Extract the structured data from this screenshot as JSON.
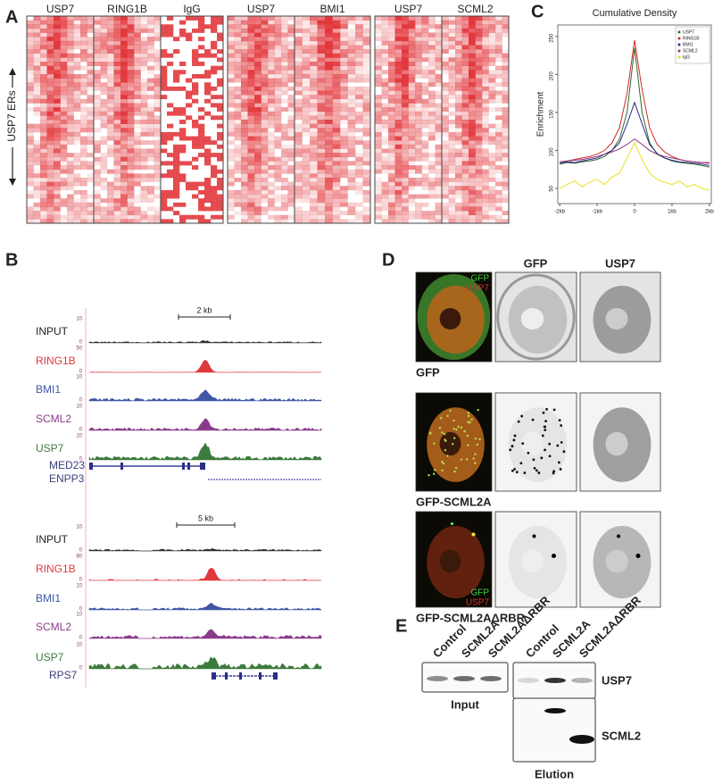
{
  "panel_labels": [
    "A",
    "B",
    "C",
    "D",
    "E"
  ],
  "panel_a": {
    "groups": [
      [
        "USP7",
        "RING1B",
        "IgG"
      ],
      [
        "USP7",
        "BMI1"
      ],
      [
        "USP7",
        "SCML2"
      ]
    ],
    "y_label": "USP7 ERs"
  },
  "panel_b": {
    "loci": [
      {
        "scale": "2 kb",
        "genes": [
          "MED23",
          "ENPP3"
        ],
        "tracks": [
          {
            "name": "INPUT",
            "max": 10,
            "min": 0
          },
          {
            "name": "RING1B",
            "max": 50,
            "min": 0
          },
          {
            "name": "BMI1",
            "max": 10,
            "min": 0
          },
          {
            "name": "SCML2",
            "max": 10,
            "min": 0
          },
          {
            "name": "USP7",
            "max": 10,
            "min": 0
          }
        ]
      },
      {
        "scale": "5 kb",
        "genes": [
          "RPS7"
        ],
        "tracks": [
          {
            "name": "INPUT",
            "max": 10,
            "min": 0
          },
          {
            "name": "RING1B",
            "max": 80,
            "min": 0
          },
          {
            "name": "BMI1",
            "max": 10,
            "min": 0
          },
          {
            "name": "SCML2",
            "max": 10,
            "min": 0
          },
          {
            "name": "USP7",
            "max": 10,
            "min": 0
          }
        ]
      }
    ]
  },
  "chart_data": {
    "type": "line",
    "title": "Cumulative Density",
    "y_label": "Enrichment",
    "x": [
      -2,
      -1.8,
      -1.6,
      -1.4,
      -1.2,
      -1,
      -0.8,
      -0.6,
      -0.4,
      -0.2,
      0,
      0.2,
      0.4,
      0.6,
      0.8,
      1,
      1.2,
      1.4,
      1.6,
      1.8,
      2
    ],
    "xlim": [
      -2.05,
      2.05
    ],
    "xticks": [
      {
        "value": -2,
        "label": "-2kb"
      },
      {
        "value": -1,
        "label": "-1kb"
      },
      0,
      {
        "value": 1,
        "label": "1kb"
      },
      {
        "value": 2,
        "label": "2kb"
      }
    ],
    "ylim": [
      30,
      265
    ],
    "yticks": [
      50,
      100,
      150,
      200,
      250
    ],
    "legend": "top-right",
    "series": [
      {
        "name": "USP7",
        "color": "#2e6b2e",
        "values": [
          82,
          84,
          83,
          85,
          86,
          88,
          92,
          100,
          115,
          150,
          235,
          150,
          110,
          95,
          90,
          86,
          84,
          83,
          82,
          80,
          78
        ]
      },
      {
        "name": "RING1B",
        "color": "#d62728",
        "values": [
          85,
          86,
          88,
          90,
          92,
          95,
          100,
          110,
          130,
          175,
          245,
          180,
          130,
          108,
          98,
          92,
          88,
          86,
          85,
          84,
          83
        ]
      },
      {
        "name": "BMI1",
        "color": "#2a2a8a",
        "values": [
          83,
          85,
          84,
          86,
          88,
          90,
          95,
          100,
          110,
          135,
          163,
          135,
          108,
          96,
          90,
          87,
          85,
          84,
          83,
          82,
          80
        ]
      },
      {
        "name": "SCML2",
        "color": "#8a3a7a",
        "values": [
          85,
          86,
          87,
          88,
          90,
          92,
          95,
          98,
          102,
          108,
          115,
          108,
          100,
          95,
          92,
          90,
          88,
          86,
          85,
          84,
          84
        ]
      },
      {
        "name": "IgG",
        "color": "#e8e020",
        "values": [
          50,
          55,
          60,
          52,
          58,
          62,
          55,
          65,
          70,
          90,
          110,
          88,
          70,
          62,
          58,
          55,
          60,
          52,
          55,
          50,
          48
        ]
      }
    ]
  },
  "panel_d": {
    "column_headers": [
      "GFP",
      "USP7"
    ],
    "overlay_labels": [
      "GFP",
      "USP7"
    ],
    "rows": [
      "GFP",
      "GFP-SCML2A",
      "GFP-SCML2AΔRBR"
    ]
  },
  "panel_e": {
    "lanes": [
      "Control",
      "SCML2A",
      "SCML2AΔRBR",
      "Control",
      "SCML2A",
      "SCML2AΔRBR"
    ],
    "bands": [
      "USP7",
      "SCML2"
    ],
    "groups": [
      "Input",
      "Elution"
    ]
  }
}
